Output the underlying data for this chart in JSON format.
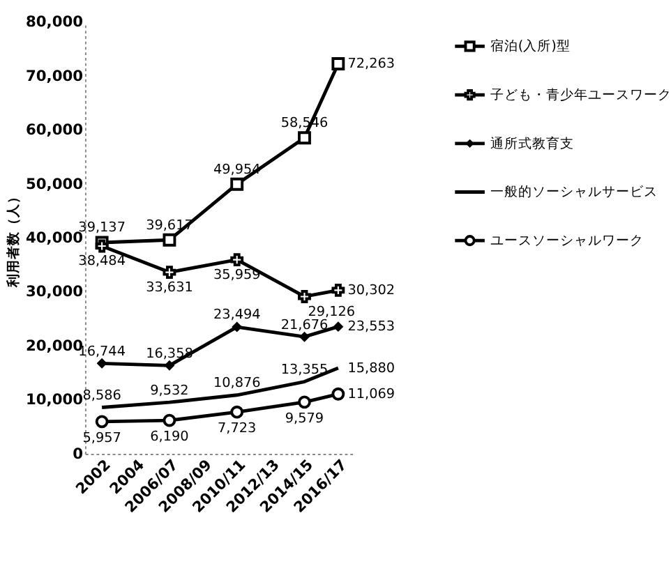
{
  "chart_data": {
    "type": "line",
    "ylabel": "利用者数（人）",
    "categories": [
      "2002",
      "2004",
      "2006/07",
      "2008/09",
      "2010/11",
      "2012/13",
      "2014/15",
      "2016/17"
    ],
    "series": [
      {
        "name": "宿泊(入所)型",
        "color": "#000000",
        "marker": "square",
        "values": [
          39137,
          null,
          39617,
          null,
          49954,
          null,
          58546,
          72263
        ],
        "value_labels": [
          "39,137",
          null,
          "39,617",
          null,
          "49,954",
          null,
          "58,546",
          "72,263"
        ]
      },
      {
        "name": "子ども・青少年ユースワーク",
        "color": "#000000",
        "marker": "cross",
        "values": [
          38484,
          null,
          33631,
          null,
          35959,
          null,
          29126,
          30302
        ],
        "value_labels": [
          "38,484",
          null,
          "33,631",
          null,
          "35,959",
          null,
          "29,126",
          "30,302"
        ]
      },
      {
        "name": "通所式教育支",
        "color": "#000000",
        "marker": "diamond",
        "values": [
          16744,
          null,
          16358,
          null,
          23494,
          null,
          21676,
          23553
        ],
        "value_labels": [
          "16,744",
          null,
          "16,358",
          null,
          "23,494",
          null,
          "21,676",
          "23,553"
        ]
      },
      {
        "name": "一般的ソーシャルサービス",
        "color": "#000000",
        "marker": "none",
        "values": [
          8586,
          null,
          9532,
          null,
          10876,
          null,
          13355,
          15880
        ],
        "value_labels": [
          "8,586",
          null,
          "9,532",
          null,
          "10,876",
          null,
          "13,355",
          "15,880"
        ]
      },
      {
        "name": "ユースソーシャルワーク",
        "color": "#000000",
        "marker": "circle",
        "values": [
          5957,
          null,
          6190,
          null,
          7723,
          null,
          9579,
          11069
        ],
        "value_labels": [
          "5,957",
          null,
          "6,190",
          null,
          "7,723",
          null,
          "9,579",
          "11,069"
        ]
      }
    ],
    "ylim": [
      0,
      80000
    ],
    "yticks": [
      0,
      {
        "value": 10000,
        "label": "10,000"
      },
      {
        "value": 20000,
        "label": "20,000"
      },
      {
        "value": 30000,
        "label": "30,000"
      },
      {
        "value": 40000,
        "label": "40,000"
      },
      {
        "value": 50000,
        "label": "50,000"
      },
      {
        "value": 60000,
        "label": "60,000"
      },
      {
        "value": 70000,
        "label": "70,000"
      },
      {
        "value": 80000,
        "label": "80,000"
      }
    ],
    "grid": false,
    "legend": "right",
    "line_style": "solid"
  }
}
